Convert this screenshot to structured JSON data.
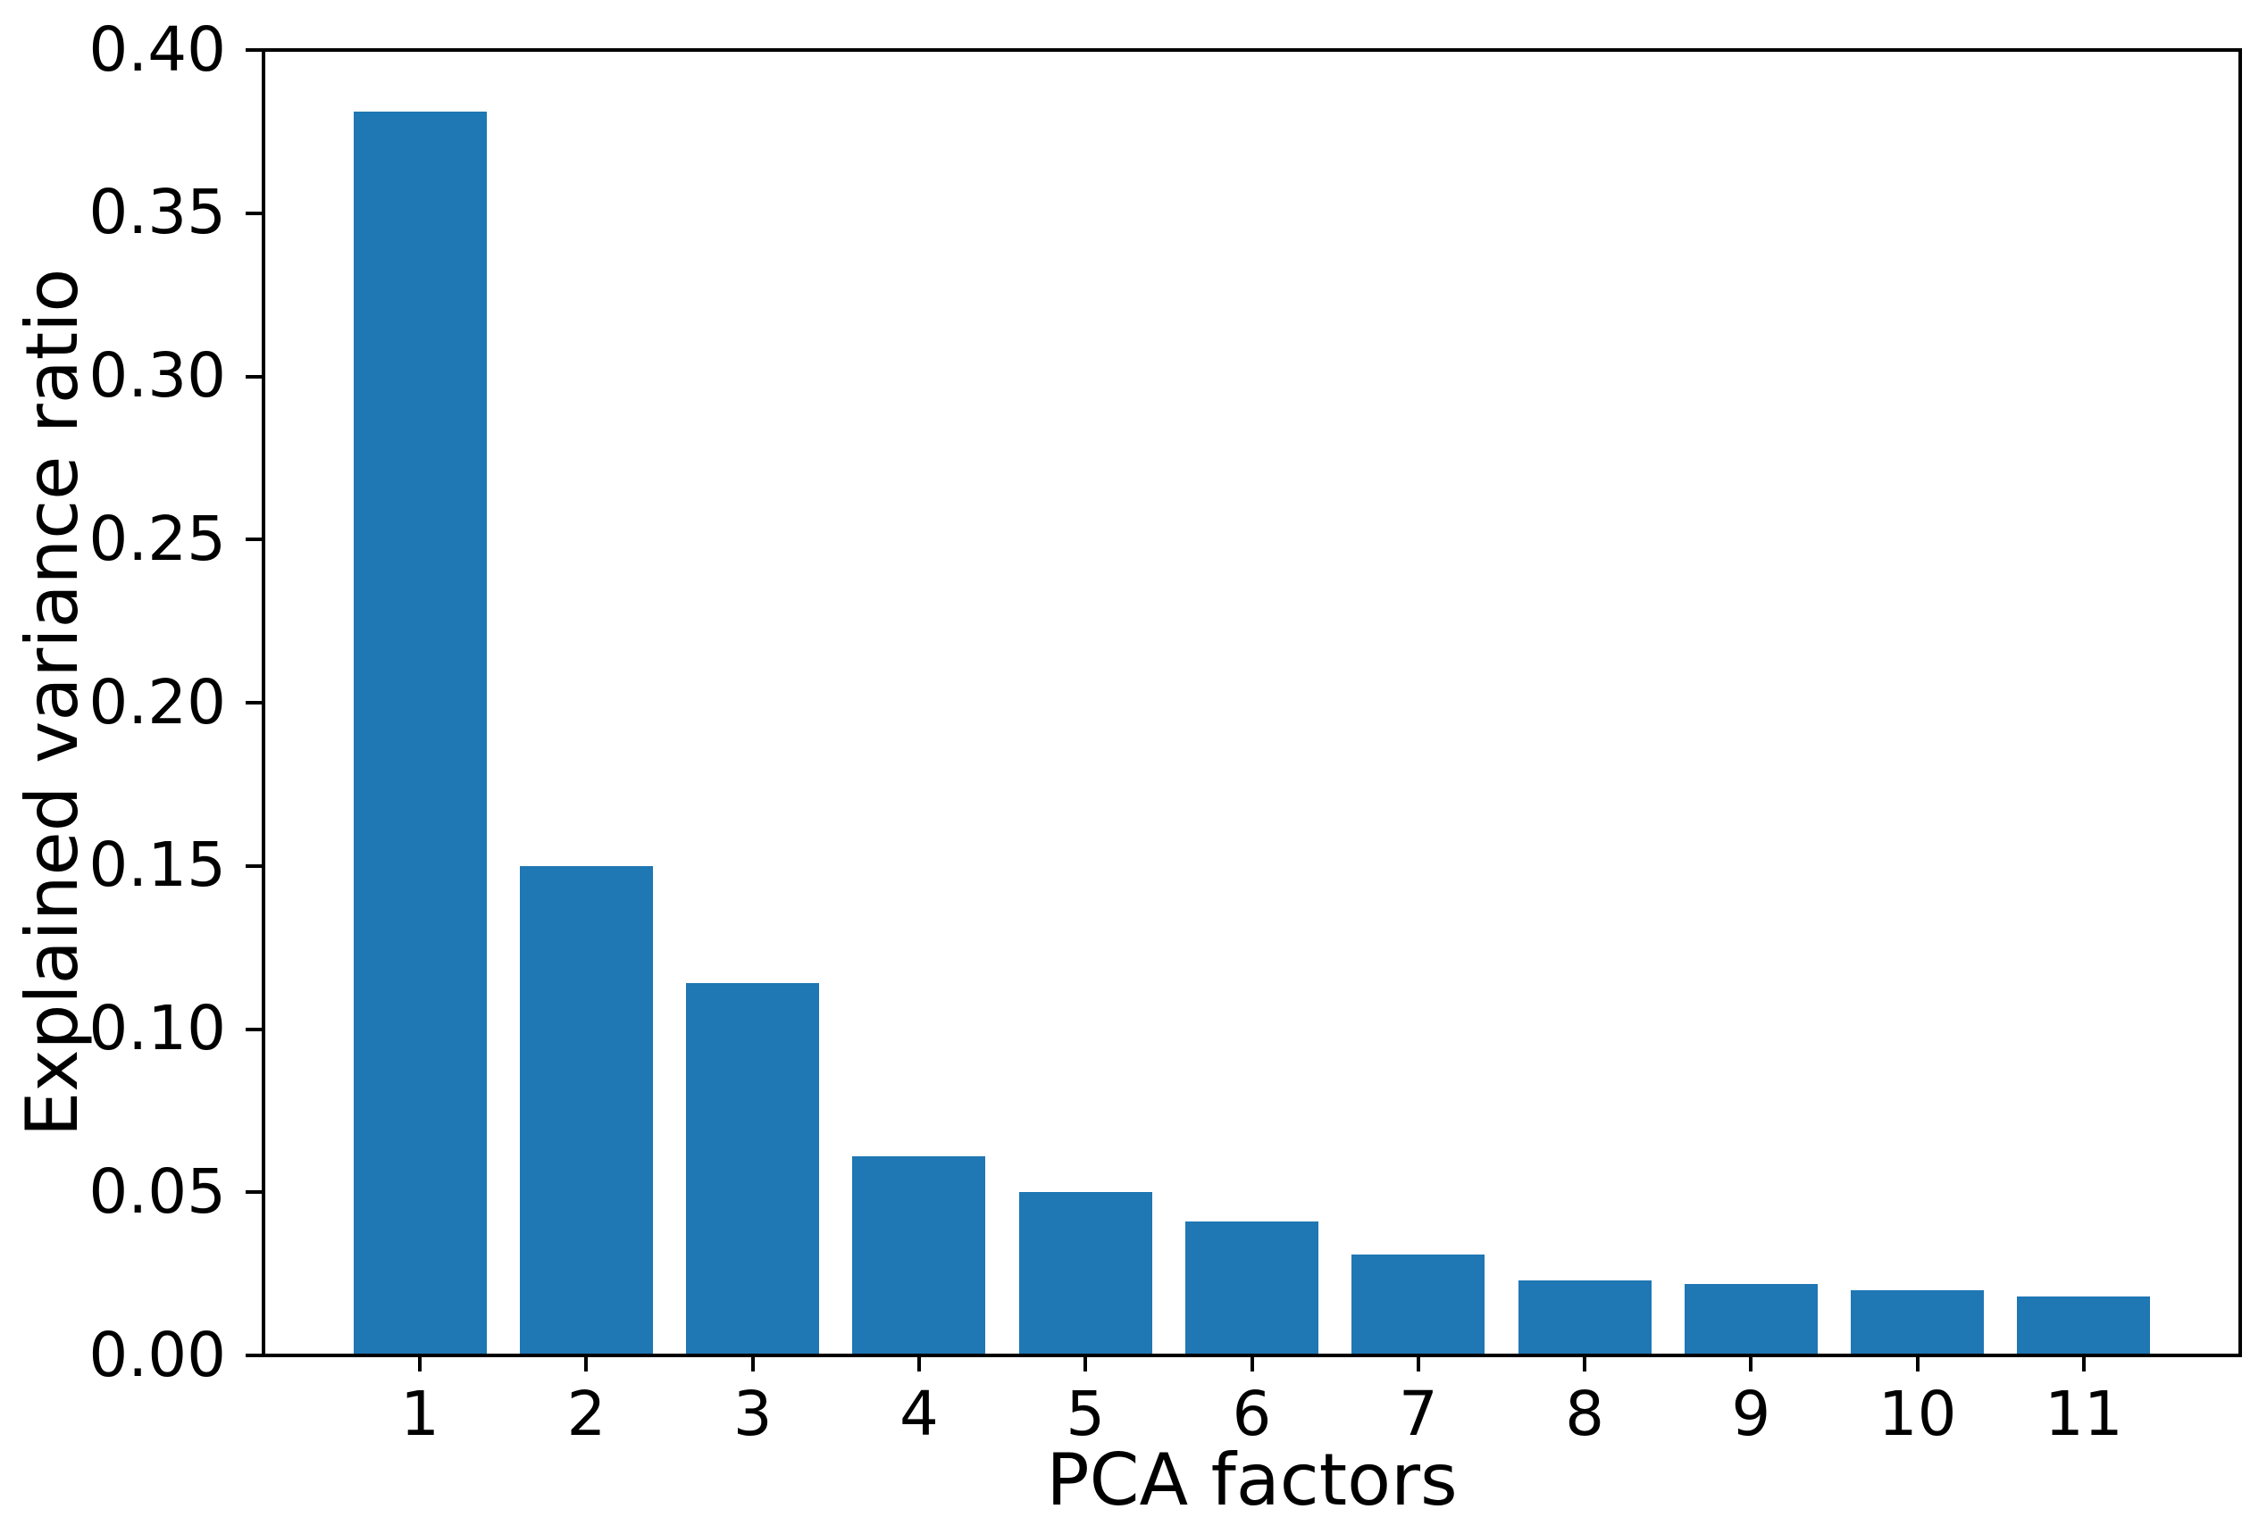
{
  "chart_data": {
    "type": "bar",
    "title": "",
    "xlabel": "PCA factors",
    "ylabel": "Explained variance ratio",
    "categories": [
      "1",
      "2",
      "3",
      "4",
      "5",
      "6",
      "7",
      "8",
      "9",
      "10",
      "11"
    ],
    "values": [
      0.381,
      0.15,
      0.114,
      0.061,
      0.05,
      0.041,
      0.031,
      0.023,
      0.022,
      0.02,
      0.018
    ],
    "xlim": [
      0.06,
      11.94
    ],
    "ylim": [
      0.0,
      0.4
    ],
    "yticks": [
      0.0,
      0.05,
      0.1,
      0.15,
      0.2,
      0.25,
      0.3,
      0.35,
      0.4
    ],
    "ytick_labels": [
      "0.00",
      "0.05",
      "0.10",
      "0.15",
      "0.20",
      "0.25",
      "0.30",
      "0.35",
      "0.40"
    ],
    "bar_width_units": 0.8,
    "bar_color": "#1f77b4",
    "axis_color": "#000000",
    "background_color": "#ffffff",
    "grid": false,
    "legend": "none"
  }
}
